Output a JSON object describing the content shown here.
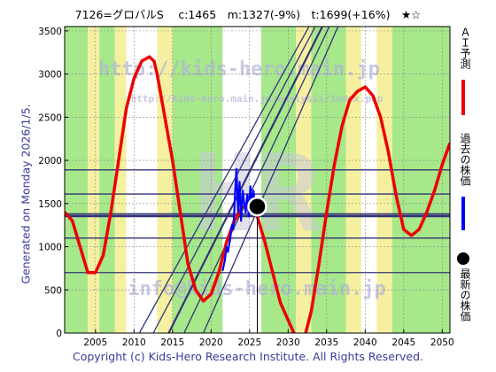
{
  "title": "7126=グロバルS　 c:1465　m:1327(-9%)　t:1699(+16%)　★☆",
  "footer": "Copyright (c) Kids-Hero Research Institute. All Rights Reserved.",
  "side_label": "Generated on Monday 2026/1/5.",
  "watermark": {
    "line1": "http://kids-hero.main.jp",
    "line2": "http://kids-hero.main.jp/analysis/index.php",
    "line3": "info@kids-hero.main.jp",
    "logo": "HR"
  },
  "colors": {
    "ai_forecast": "#ee0000",
    "past_price": "#0000ff",
    "latest_price": "#000000",
    "bands": "#333377",
    "background_green": "#a6e88a",
    "background_yellow": "#f5f0a0",
    "background_white": "#ffffff",
    "grid": "#888888"
  },
  "legend": [
    {
      "label": "ＡＩ予測",
      "icon": "red-line"
    },
    {
      "label": "過去の株価",
      "icon": "blue-line"
    },
    {
      "label": "最新の株価",
      "icon": "black-dot"
    }
  ],
  "chart_data": {
    "type": "line",
    "xlim": [
      2001,
      2051
    ],
    "ylim": [
      0,
      3550
    ],
    "x_ticks": [
      2005,
      2010,
      2015,
      2020,
      2025,
      2030,
      2035,
      2040,
      2045,
      2050
    ],
    "y_ticks": [
      0,
      500,
      1000,
      1500,
      2000,
      2500,
      3000,
      3500
    ],
    "grid": true,
    "legend_position": "right",
    "series": [
      {
        "name": "ＡＩ予測",
        "points": [
          [
            2001,
            1400
          ],
          [
            2002,
            1300
          ],
          [
            2003,
            1000
          ],
          [
            2004,
            700
          ],
          [
            2005,
            700
          ],
          [
            2006,
            900
          ],
          [
            2007,
            1400
          ],
          [
            2008,
            2000
          ],
          [
            2009,
            2600
          ],
          [
            2010,
            2950
          ],
          [
            2011,
            3150
          ],
          [
            2012,
            3200
          ],
          [
            2012.6,
            3150
          ],
          [
            2013,
            3000
          ],
          [
            2014,
            2500
          ],
          [
            2015,
            2000
          ],
          [
            2016,
            1400
          ],
          [
            2017,
            800
          ],
          [
            2018,
            500
          ],
          [
            2019,
            370
          ],
          [
            2020,
            450
          ],
          [
            2021,
            700
          ],
          [
            2022,
            1050
          ],
          [
            2023,
            1300
          ],
          [
            2024,
            1450
          ],
          [
            2025,
            1500
          ],
          [
            2026,
            1350
          ],
          [
            2027,
            1050
          ],
          [
            2028,
            700
          ],
          [
            2029,
            350
          ],
          [
            2030,
            150
          ],
          [
            2031,
            -50
          ],
          [
            2032,
            -100
          ],
          [
            2033,
            250
          ],
          [
            2034,
            800
          ],
          [
            2035,
            1400
          ],
          [
            2036,
            1950
          ],
          [
            2037,
            2400
          ],
          [
            2038,
            2700
          ],
          [
            2039,
            2800
          ],
          [
            2040,
            2850
          ],
          [
            2041,
            2750
          ],
          [
            2042,
            2500
          ],
          [
            2043,
            2100
          ],
          [
            2044,
            1600
          ],
          [
            2045,
            1200
          ],
          [
            2046,
            1130
          ],
          [
            2047,
            1200
          ],
          [
            2048,
            1400
          ],
          [
            2049,
            1650
          ],
          [
            2050,
            1950
          ],
          [
            2051,
            2200
          ]
        ]
      },
      {
        "name": "過去の株価",
        "points": [
          [
            2021.5,
            720
          ],
          [
            2021.8,
            850
          ],
          [
            2022.0,
            1000
          ],
          [
            2022.2,
            940
          ],
          [
            2022.5,
            1100
          ],
          [
            2022.7,
            1250
          ],
          [
            2022.9,
            1200
          ],
          [
            2023.1,
            1600
          ],
          [
            2023.3,
            1900
          ],
          [
            2023.5,
            1400
          ],
          [
            2023.7,
            1750
          ],
          [
            2023.9,
            1300
          ],
          [
            2024.1,
            1650
          ],
          [
            2024.3,
            1500
          ],
          [
            2024.5,
            1400
          ],
          [
            2024.7,
            1600
          ],
          [
            2024.9,
            1350
          ],
          [
            2025.1,
            1700
          ],
          [
            2025.3,
            1500
          ],
          [
            2025.5,
            1650
          ],
          [
            2025.7,
            1450
          ],
          [
            2025.9,
            1500
          ],
          [
            2026.0,
            1465
          ]
        ]
      }
    ],
    "latest": {
      "x": 2026.0,
      "y": 1465,
      "label": "c:1465"
    },
    "horizontal_levels": [
      700,
      1100,
      1350,
      1360,
      1380,
      1610,
      1890
    ],
    "diagonal_bands": [
      {
        "from": [
          2010.7,
          0
        ],
        "to": [
          2051,
          6500
        ]
      },
      {
        "from": [
          2012.5,
          0
        ],
        "to": [
          2051,
          6500
        ]
      },
      {
        "from": [
          2014.5,
          0
        ],
        "to": [
          2051,
          6500
        ]
      },
      {
        "from": [
          2016.5,
          0
        ],
        "to": [
          2051,
          6500
        ]
      },
      {
        "from": [
          2019.0,
          0
        ],
        "to": [
          2051,
          6500
        ]
      }
    ],
    "background_regions": [
      {
        "from": 2001.0,
        "to": 2004.0,
        "color": "green"
      },
      {
        "from": 2004.0,
        "to": 2005.5,
        "color": "yellow"
      },
      {
        "from": 2005.5,
        "to": 2007.5,
        "color": "green"
      },
      {
        "from": 2007.5,
        "to": 2009.0,
        "color": "yellow"
      },
      {
        "from": 2009.0,
        "to": 2013.0,
        "color": "white"
      },
      {
        "from": 2013.0,
        "to": 2015.0,
        "color": "yellow"
      },
      {
        "from": 2015.0,
        "to": 2021.5,
        "color": "green"
      },
      {
        "from": 2021.5,
        "to": 2026.5,
        "color": "white"
      },
      {
        "from": 2026.5,
        "to": 2031.0,
        "color": "green"
      },
      {
        "from": 2031.0,
        "to": 2033.0,
        "color": "yellow"
      },
      {
        "from": 2033.0,
        "to": 2037.5,
        "color": "green"
      },
      {
        "from": 2037.5,
        "to": 2039.5,
        "color": "yellow"
      },
      {
        "from": 2039.5,
        "to": 2041.5,
        "color": "white"
      },
      {
        "from": 2041.5,
        "to": 2043.5,
        "color": "yellow"
      },
      {
        "from": 2043.5,
        "to": 2051.0,
        "color": "green"
      }
    ]
  }
}
